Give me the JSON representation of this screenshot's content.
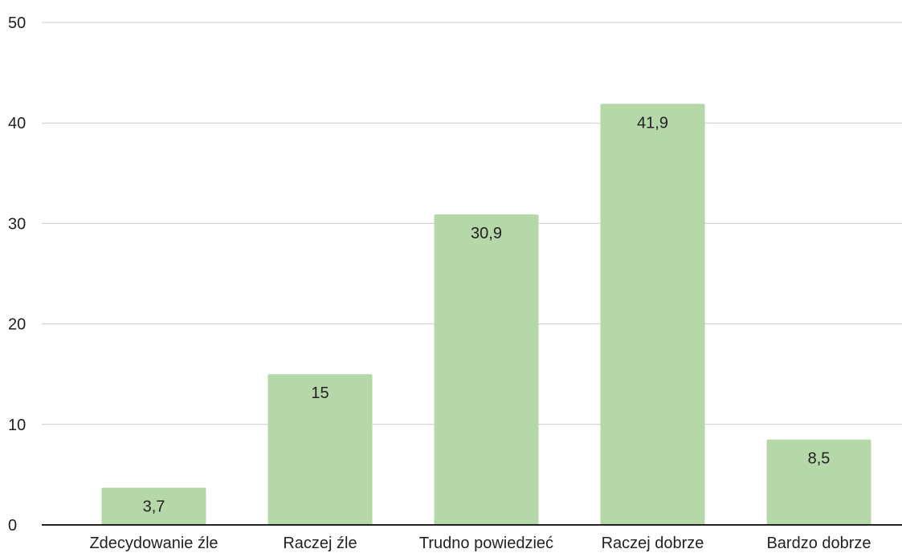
{
  "chart_data": {
    "type": "bar",
    "title": "",
    "xlabel": "",
    "ylabel": "",
    "categories": [
      "Zdecydowanie źle",
      "Raczej źle",
      "Trudno powiedzieć",
      "Raczej dobrze",
      "Bardzo dobrze"
    ],
    "values": [
      3.7,
      15,
      30.9,
      41.9,
      8.5
    ],
    "data_labels": [
      "3,7",
      "15",
      "30,9",
      "41,9",
      "8,5"
    ],
    "ylim": [
      0,
      50
    ],
    "yticks": [
      0,
      10,
      20,
      30,
      40,
      50
    ],
    "grid": true,
    "legend": "none",
    "bar_color": "#b6d7a8",
    "grid_color": "#cccccc",
    "axis_color": "#222222",
    "text_color": "#222222"
  }
}
